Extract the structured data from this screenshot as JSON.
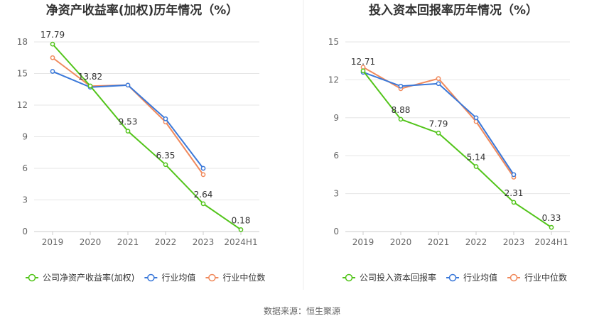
{
  "source": "数据来源：恒生聚源",
  "chart_data": [
    {
      "type": "line",
      "title": "净资产收益率(加权)历年情况（%）",
      "categories": [
        "2019",
        "2020",
        "2021",
        "2022",
        "2023",
        "2024H1"
      ],
      "yticks": [
        "0",
        "3",
        "6",
        "9",
        "12",
        "15",
        "18"
      ],
      "ylim": [
        0,
        18
      ],
      "grid": true,
      "legend_position": "bottom",
      "series": [
        {
          "name": "公司净资产收益率(加权)",
          "color": "#52c41a",
          "values": [
            17.79,
            13.82,
            9.53,
            6.35,
            2.64,
            0.18
          ],
          "labels": [
            "17.79",
            "13.82",
            "9.53",
            "6.35",
            "2.64",
            "0.18"
          ]
        },
        {
          "name": "行业均值",
          "color": "#3a78d9",
          "values": [
            15.2,
            13.7,
            13.9,
            10.7,
            6.0,
            null
          ]
        },
        {
          "name": "行业中位数",
          "color": "#f08a5d",
          "values": [
            16.5,
            13.8,
            13.9,
            10.4,
            5.4,
            null
          ]
        }
      ]
    },
    {
      "type": "line",
      "title": "投入资本回报率历年情况（%）",
      "categories": [
        "2019",
        "2020",
        "2021",
        "2022",
        "2023",
        "2024H1"
      ],
      "yticks": [
        "0",
        "3",
        "6",
        "9",
        "12",
        "15"
      ],
      "ylim": [
        0,
        15
      ],
      "grid": true,
      "legend_position": "bottom",
      "series": [
        {
          "name": "公司投入资本回报率",
          "color": "#52c41a",
          "values": [
            12.71,
            8.88,
            7.79,
            5.14,
            2.31,
            0.33
          ],
          "labels": [
            "12.71",
            "8.88",
            "7.79",
            "5.14",
            "2.31",
            "0.33"
          ]
        },
        {
          "name": "行业均值",
          "color": "#3a78d9",
          "values": [
            12.6,
            11.5,
            11.7,
            9.0,
            4.5,
            null
          ]
        },
        {
          "name": "行业中位数",
          "color": "#f08a5d",
          "values": [
            13.0,
            11.3,
            12.1,
            8.7,
            4.3,
            null
          ]
        }
      ]
    }
  ]
}
